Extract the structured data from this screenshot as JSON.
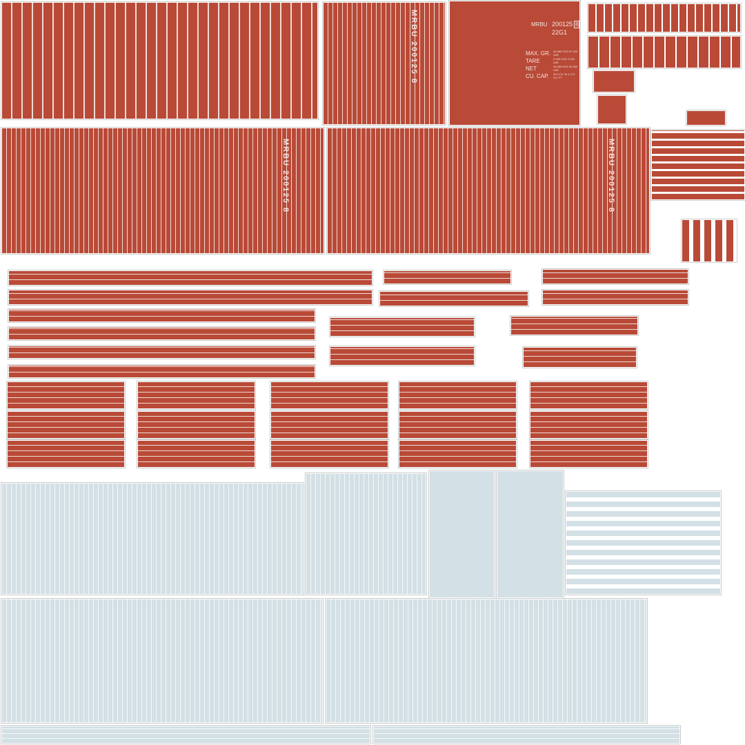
{
  "door_marking": {
    "owner_code": "MRBU",
    "serial": "200125",
    "check_digit": "8",
    "type_code": "22G1",
    "labels": [
      "MAX. GR.",
      "TARE",
      "NET",
      "CU. CAP."
    ],
    "values": [
      "30.480 KGS 67.200 LBS",
      "2.130 KGS 4.700 LBS",
      "28.350 KGS 62.500 LBS",
      "33.2 CU. M 1.172 CU. FT"
    ]
  },
  "side_marking": "MRBU 200125 8",
  "colors": {
    "paint": "#b94a37",
    "bare": "#d3e0e5"
  }
}
